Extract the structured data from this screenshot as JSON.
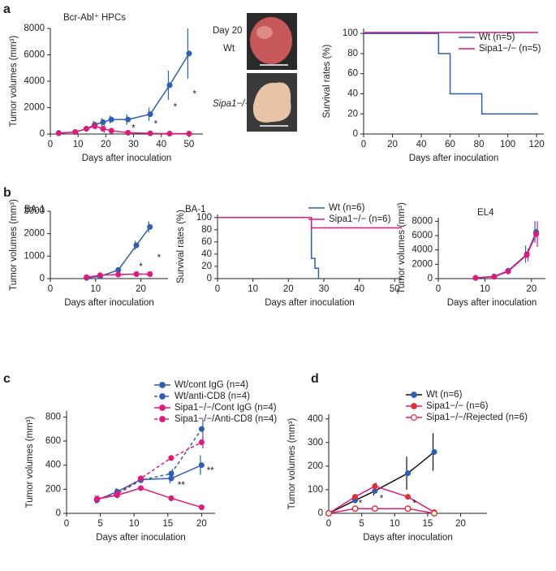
{
  "panels": [
    "a",
    "b",
    "c",
    "d"
  ],
  "photo_panel": {
    "day": "Day 20",
    "rows": [
      "Wt",
      "Sipa1−/−"
    ]
  },
  "chart_data": [
    {
      "type": "line",
      "title": "Bcr-Abl⁺ HPCs",
      "x_label": "Days after inoculation",
      "y_label": "Tumor volumes (mm³)",
      "xlim": [
        0,
        55
      ],
      "xticks": [
        0,
        10,
        20,
        30,
        40,
        50
      ],
      "ylim": [
        0,
        8000
      ],
      "yticks": [
        0,
        2000,
        4000,
        6000,
        8000
      ],
      "series": [
        {
          "color": "#2f5fb3",
          "marker": "circle",
          "x": [
            3,
            9,
            13,
            16,
            19,
            22,
            28,
            36,
            43,
            50
          ],
          "values": [
            80,
            150,
            400,
            700,
            900,
            1100,
            1100,
            1500,
            3700,
            6100
          ],
          "errors": [
            30,
            60,
            150,
            300,
            300,
            300,
            400,
            500,
            1100,
            1900
          ]
        },
        {
          "color": "#e0197d",
          "marker": "circle",
          "x": [
            3,
            9,
            13,
            16,
            19,
            22,
            28,
            36,
            43,
            50
          ],
          "values": [
            60,
            150,
            400,
            600,
            400,
            250,
            100,
            50,
            30,
            30
          ],
          "errors": [
            30,
            60,
            150,
            250,
            300,
            200,
            100,
            50,
            30,
            30
          ]
        }
      ],
      "annotations": [
        {
          "text": "*",
          "x": 30,
          "y": 400
        },
        {
          "text": "*",
          "x": 38,
          "y": 700
        },
        {
          "text": "*",
          "x": 45,
          "y": 2000
        },
        {
          "text": "*",
          "x": 52,
          "y": 3000
        }
      ]
    },
    {
      "type": "line",
      "x_label": "Days after inoculation",
      "y_label": "Survival rates (%)",
      "xlim": [
        0,
        125
      ],
      "xticks": [
        0,
        20,
        40,
        60,
        80,
        100,
        120
      ],
      "ylim": [
        0,
        105
      ],
      "yticks": [
        0,
        20,
        40,
        60,
        80,
        100
      ],
      "legend": "upper right",
      "series": [
        {
          "name": "Wt (n=5)",
          "color": "#2f5fb3",
          "marker": "none",
          "x": [
            0,
            52,
            52,
            60,
            60,
            82,
            82,
            121
          ],
          "values": [
            100,
            100,
            80,
            80,
            40,
            40,
            20,
            20
          ]
        },
        {
          "name": "Sipa1−/− (n=5)",
          "color": "#e0197d",
          "marker": "none",
          "x": [
            0,
            121
          ],
          "values": [
            101,
            101
          ]
        }
      ]
    },
    {
      "type": "line",
      "title": "BA-1",
      "x_label": "Days after inoculation",
      "y_label": "Tumor volumes (mm³)",
      "xlim": [
        0,
        26
      ],
      "xticks": [
        0,
        10,
        20
      ],
      "ylim": [
        0,
        3000
      ],
      "yticks": [
        0,
        1000,
        2000,
        3000
      ],
      "series": [
        {
          "color": "#2f5fb3",
          "marker": "circle",
          "x": [
            8,
            11,
            15,
            19,
            22
          ],
          "values": [
            30,
            100,
            380,
            1480,
            2300
          ],
          "errors": [
            20,
            50,
            60,
            200,
            250
          ]
        },
        {
          "color": "#e0197d",
          "marker": "circle",
          "x": [
            8,
            11,
            15,
            19,
            22
          ],
          "values": [
            60,
            150,
            180,
            200,
            200
          ],
          "errors": [
            30,
            40,
            80,
            130,
            120
          ]
        }
      ],
      "annotations": [
        {
          "text": "*",
          "x": 20,
          "y": 500
        },
        {
          "text": "*",
          "x": 24,
          "y": 900
        }
      ]
    },
    {
      "type": "line",
      "title": "BA-1",
      "x_label": "Days after inoculation",
      "y_label": "Survival rates (%)",
      "xlim": [
        0,
        52
      ],
      "xticks": [
        0,
        10,
        20,
        30,
        40,
        50
      ],
      "ylim": [
        0,
        105
      ],
      "yticks": [
        0,
        20,
        40,
        60,
        80,
        100
      ],
      "legend": "upper right",
      "series": [
        {
          "name": "Wt (n=6)",
          "color": "#2f5fb3",
          "marker": "none",
          "x": [
            0,
            26.5,
            26.5,
            27.5,
            27.5,
            28.5,
            28.5,
            29
          ],
          "values": [
            100,
            100,
            33,
            33,
            17,
            17,
            0,
            0
          ]
        },
        {
          "name": "Sipa1−/− (n=6)",
          "color": "#e0197d",
          "marker": "none",
          "x": [
            0,
            26.5,
            26.5,
            52
          ],
          "values": [
            100,
            100,
            83,
            83
          ]
        }
      ]
    },
    {
      "type": "line",
      "title": "EL4",
      "x_label": "Days after inoculation",
      "y_label": "Tumor volumes (mm³)",
      "xlim": [
        0,
        23
      ],
      "xticks": [
        0,
        10,
        20
      ],
      "ylim": [
        0,
        8500
      ],
      "yticks": [
        0,
        2000,
        4000,
        6000,
        8000
      ],
      "series": [
        {
          "color": "#2f5fb3",
          "marker": "circle",
          "x": [
            8,
            12,
            15,
            19,
            21
          ],
          "values": [
            100,
            300,
            1100,
            3400,
            6500
          ],
          "errors": [
            50,
            100,
            300,
            1200,
            1500
          ]
        },
        {
          "color": "#e0197d",
          "marker": "circle",
          "x": [
            8,
            12,
            15,
            19,
            21
          ],
          "values": [
            100,
            250,
            1000,
            3300,
            6200
          ],
          "errors": [
            50,
            100,
            300,
            900,
            1800
          ]
        }
      ]
    },
    {
      "type": "line",
      "x_label": "Days after inoculation",
      "y_label": "Tumor volumes (mm³)",
      "xlim": [
        0,
        22
      ],
      "xticks": [
        0,
        5,
        10,
        15,
        20
      ],
      "ylim": [
        0,
        850
      ],
      "yticks": [
        0,
        200,
        400,
        600,
        800
      ],
      "legend": "upper right",
      "series": [
        {
          "name": "Wt/cont IgG (n=4)",
          "color": "#2f5fb3",
          "marker": "circle",
          "dashed": false,
          "x": [
            4.5,
            7.5,
            11,
            15.5,
            20
          ],
          "values": [
            110,
            180,
            280,
            290,
            400
          ],
          "errors": [
            30,
            30,
            20,
            40,
            80
          ]
        },
        {
          "name": "Wt/anti-CD8 (n=4)",
          "color": "#2f5fb3",
          "marker": "circle",
          "dashed": true,
          "x": [
            4.5,
            7.5,
            11,
            15.5,
            20
          ],
          "values": [
            115,
            160,
            275,
            330,
            700
          ],
          "errors": [
            30,
            30,
            20,
            40,
            80
          ]
        },
        {
          "name": "Sipa1−/−/Cont IgG (n=4)",
          "color": "#e0197d",
          "marker": "circle",
          "dashed": false,
          "x": [
            4.5,
            7.5,
            11,
            15.5,
            20
          ],
          "values": [
            120,
            150,
            210,
            125,
            50
          ],
          "errors": [
            30,
            20,
            15,
            15,
            10
          ]
        },
        {
          "name": "Sipa1−/−/Anti-CD8 (n=4)",
          "color": "#e0197d",
          "marker": "circle",
          "dashed": true,
          "x": [
            4.5,
            7.5,
            11,
            15.5,
            20
          ],
          "values": [
            120,
            160,
            290,
            460,
            590
          ],
          "errors": [
            30,
            30,
            20,
            15,
            50
          ]
        }
      ],
      "annotations": [
        {
          "text": "**",
          "x": 17,
          "y": 230
        },
        {
          "text": "**",
          "x": 21.3,
          "y": 350
        }
      ]
    },
    {
      "type": "line",
      "x_label": "Days after inoculation",
      "y_label": "Tumor volumes (mm³)",
      "xlim": [
        0,
        24
      ],
      "xticks": [
        0,
        5,
        10,
        15,
        20
      ],
      "ylim": [
        0,
        420
      ],
      "yticks": [
        0,
        100,
        200,
        300,
        400
      ],
      "legend": "upper right",
      "series": [
        {
          "name": "Wt (n=6)",
          "color": "#111111",
          "marker": "circle",
          "marker_color": "#2f5fb3",
          "x": [
            0,
            4,
            7,
            12,
            16
          ],
          "values": [
            0,
            55,
            95,
            170,
            260
          ],
          "errors": [
            0,
            10,
            20,
            70,
            80
          ]
        },
        {
          "name": "Sipa1−/− (n=6)",
          "color": "#e0197d",
          "marker": "circle",
          "marker_color": "#e0302f",
          "x": [
            0,
            4,
            7,
            12,
            16
          ],
          "values": [
            0,
            70,
            115,
            70,
            5
          ],
          "errors": [
            0,
            10,
            15,
            10,
            3
          ]
        },
        {
          "name": "Sipa1−/−/Rejected (n=6)",
          "color": "#e0197d",
          "marker": "open-circle",
          "marker_color": "#e0302f",
          "x": [
            0,
            4,
            7,
            12,
            16
          ],
          "values": [
            0,
            20,
            20,
            20,
            0
          ],
          "errors": [
            0,
            5,
            5,
            10,
            0
          ]
        }
      ],
      "annotations": [
        {
          "text": "*",
          "x": 4.8,
          "y": 40
        },
        {
          "text": "*",
          "x": 8,
          "y": 60
        },
        {
          "text": "*",
          "x": 13,
          "y": 40
        }
      ]
    }
  ]
}
